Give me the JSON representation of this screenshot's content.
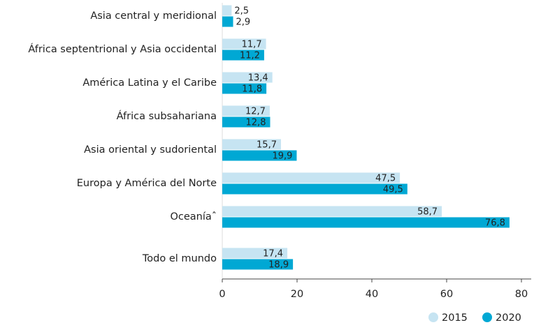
{
  "chart_data": {
    "type": "bar",
    "orientation": "horizontal",
    "categories": [
      "Asia central y meridional",
      "África septentrional y Asia occidental",
      "América Latina y el Caribe",
      "África subsahariana",
      "Asia oriental y sudoriental",
      "Europa y América del Norte",
      "Oceaníaˆ",
      "Todo el mundo"
    ],
    "series": [
      {
        "name": "2015",
        "color": "#c6e4f2",
        "values": [
          2.5,
          11.7,
          13.4,
          12.7,
          15.7,
          47.5,
          58.7,
          17.4
        ],
        "value_labels": [
          "2,5",
          "11,7",
          "13,4",
          "12,7",
          "15,7",
          "47,5",
          "58,7",
          "17,4"
        ]
      },
      {
        "name": "2020",
        "color": "#00a8d4",
        "values": [
          2.9,
          11.2,
          11.8,
          12.8,
          19.9,
          49.5,
          76.8,
          18.9
        ],
        "value_labels": [
          "2,9",
          "11,2",
          "11,8",
          "12,8",
          "19,9",
          "49,5",
          "76,8",
          "18,9"
        ]
      }
    ],
    "xlim": [
      0,
      80
    ],
    "xticks": [
      0,
      20,
      40,
      60,
      80
    ],
    "legend": "bottom-right"
  }
}
